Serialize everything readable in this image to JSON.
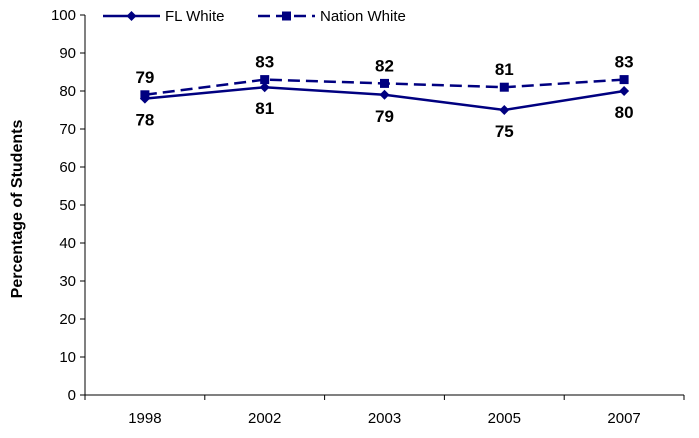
{
  "chart_data": {
    "type": "line",
    "title": "",
    "xlabel": "",
    "ylabel": "Percentage of Students",
    "categories": [
      "1998",
      "2002",
      "2003",
      "2005",
      "2007"
    ],
    "ylim": [
      0,
      100
    ],
    "yticks": [
      0,
      10,
      20,
      30,
      40,
      50,
      60,
      70,
      80,
      90,
      100
    ],
    "grid": false,
    "legend_position": "top",
    "series": [
      {
        "name": "FL White",
        "values": [
          78,
          81,
          79,
          75,
          80
        ],
        "line_style": "solid",
        "marker": "diamond",
        "color": "#000080"
      },
      {
        "name": "Nation White",
        "values": [
          79,
          83,
          82,
          81,
          83
        ],
        "line_style": "dashed",
        "marker": "square",
        "color": "#000080"
      }
    ]
  }
}
